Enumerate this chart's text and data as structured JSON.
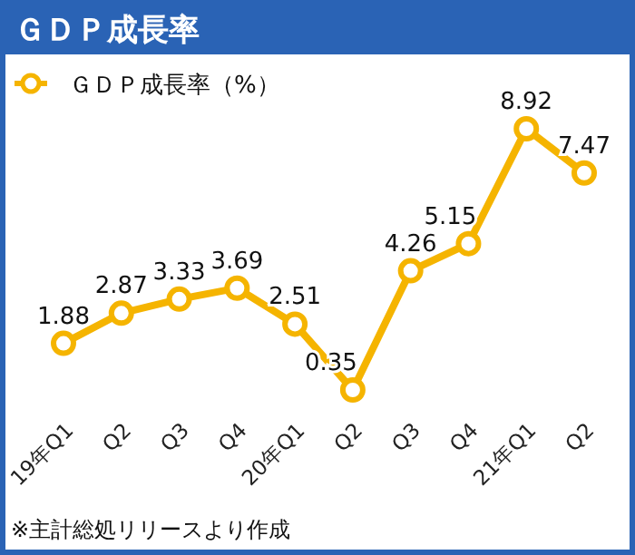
{
  "chart_data": {
    "type": "line",
    "title": "ＧＤＰ成長率",
    "categories": [
      "19年Q1",
      "Q2",
      "Q3",
      "Q4",
      "20年Q1",
      "Q2",
      "Q3",
      "Q4",
      "21年Q1",
      "Q2"
    ],
    "series": [
      {
        "name": "ＧＤＰ成長率（%）",
        "color": "#f5b400",
        "values": [
          1.88,
          2.87,
          3.33,
          3.69,
          2.51,
          0.35,
          4.26,
          5.15,
          8.92,
          7.47
        ]
      }
    ],
    "data_labels": true,
    "legend": "top left",
    "marker": "circle",
    "grid": false,
    "annotations": [
      "※主計総処リリースより作成"
    ]
  }
}
